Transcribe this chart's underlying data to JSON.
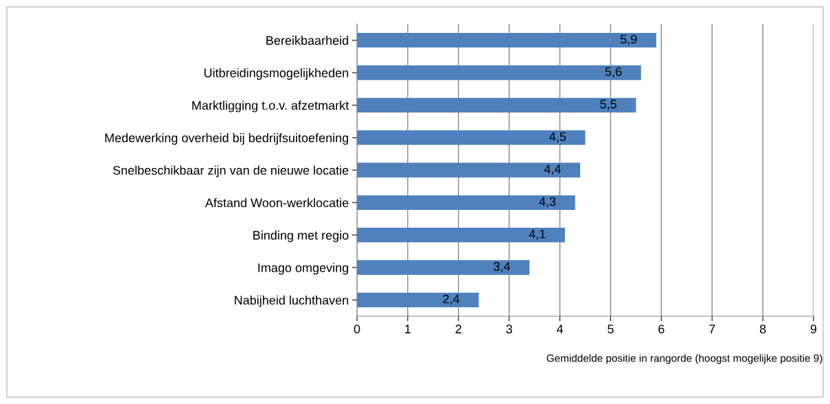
{
  "chart_data": {
    "type": "bar",
    "orientation": "horizontal",
    "categories": [
      "Bereikbaarheid",
      "Uitbreidingsmogelijkheden",
      "Marktligging t.o.v. afzetmarkt",
      "Medewerking overheid bij bedrijfsuitoefening",
      "Snelbeschikbaar zijn van de nieuwe locatie",
      "Afstand Woon-werklocatie",
      "Binding met regio",
      "Imago omgeving",
      "Nabijheid luchthaven"
    ],
    "values": [
      5.9,
      5.6,
      5.5,
      4.5,
      4.4,
      4.3,
      4.1,
      3.4,
      2.4
    ],
    "value_labels": [
      "5,9",
      "5,6",
      "5,5",
      "4,5",
      "4,4",
      "4,3",
      "4,1",
      "3,4",
      "2,4"
    ],
    "color": "#4f81bd",
    "xlim": [
      0,
      9
    ],
    "xticks": [
      0,
      1,
      2,
      3,
      4,
      5,
      6,
      7,
      8,
      9
    ],
    "xlabel": "Gemiddelde positie in rangorde (hoogst mogelijke positie 9)",
    "grid": "x"
  }
}
